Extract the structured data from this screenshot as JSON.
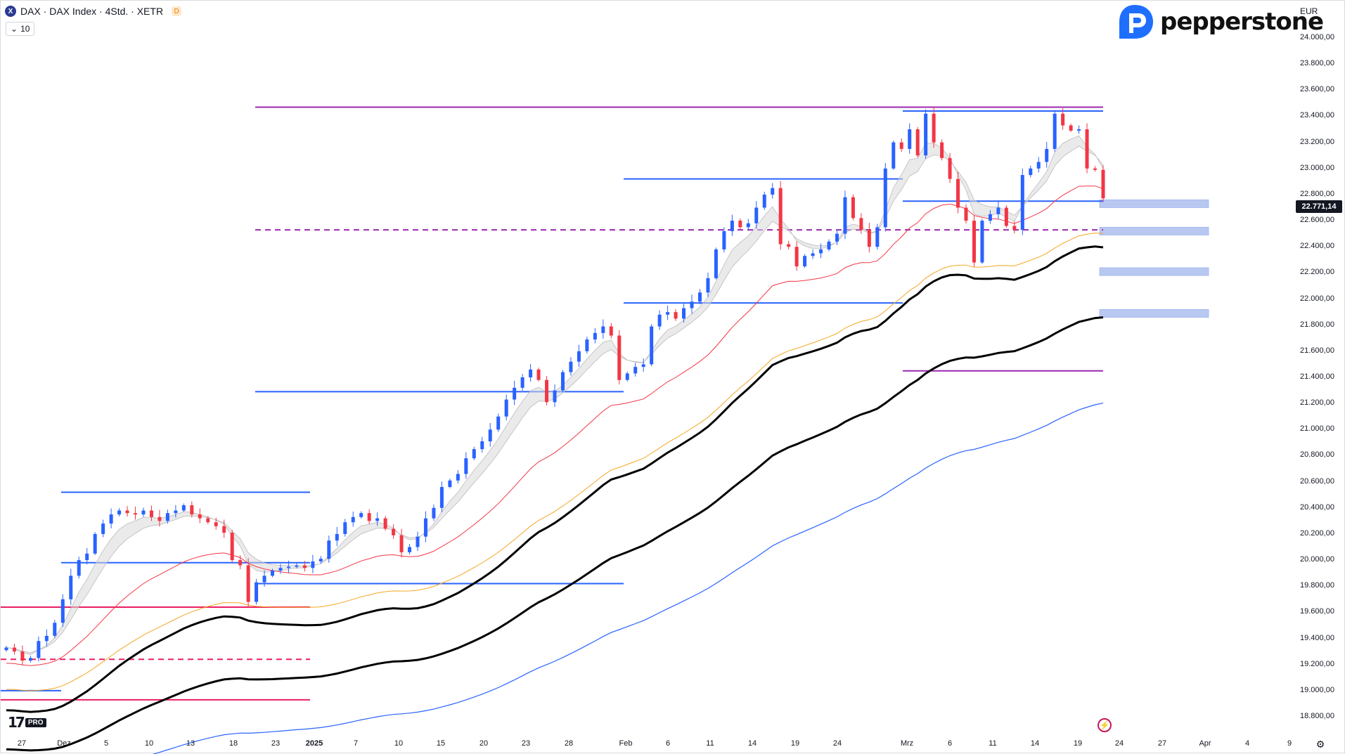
{
  "header": {
    "symbol_icon": "X",
    "title": "DAX · DAX Index · 4Std. · XETR",
    "session_badge": "D",
    "indicator_pill": "10",
    "indicator_chevron": "chevron-down-icon"
  },
  "brand": {
    "name": "pepperstone",
    "logo_icon": "pepperstone-logo-icon"
  },
  "axis": {
    "currency": "EUR",
    "current_price": "22.771,14",
    "price_labels": [
      "24.000,00",
      "23.800,00",
      "23.600,00",
      "23.400,00",
      "23.200,00",
      "23.000,00",
      "22.800,00",
      "22.600,00",
      "22.400,00",
      "22.200,00",
      "22.000,00",
      "21.800,00",
      "21.600,00",
      "21.400,00",
      "21.200,00",
      "21.000,00",
      "20.800,00",
      "20.600,00",
      "20.400,00",
      "20.200,00",
      "20.000,00",
      "19.800,00",
      "19.600,00",
      "19.400,00",
      "19.200,00",
      "19.000,00",
      "18.800,00"
    ],
    "time_labels": [
      "27",
      "Dez",
      "5",
      "10",
      "13",
      "18",
      "23",
      "2025",
      "7",
      "10",
      "15",
      "20",
      "23",
      "28",
      "Feb",
      "6",
      "11",
      "14",
      "19",
      "24",
      "Mrz",
      "6",
      "11",
      "14",
      "19",
      "24",
      "27",
      "Apr",
      "4",
      "9"
    ]
  },
  "footer": {
    "tv_logo": "17",
    "pro_badge": "PRO",
    "settings_icon": "gear-icon",
    "flash_icon": "lightning-icon"
  },
  "colors": {
    "bull": "#2962ff",
    "bear": "#f23645",
    "ema_fast": "#f23645",
    "ema_mid": "#f5a623",
    "ema_slow": "#000000",
    "ema_long": "#2962ff",
    "level_magenta": "#9c27b0",
    "level_blue": "#2962ff",
    "level_pink": "#e91e63",
    "zone": "#b8c8f0"
  },
  "chart_data": {
    "type": "candlestick",
    "symbol": "DAX",
    "timeframe": "4Std.",
    "exchange": "XETR",
    "y_range": [
      18800,
      24000
    ],
    "last_price": 22771.14,
    "horizontal_levels": [
      {
        "price": 23470,
        "style": "solid",
        "color": "magenta"
      },
      {
        "price": 23440,
        "style": "solid",
        "color": "blue"
      },
      {
        "price": 22920,
        "style": "solid",
        "color": "blue"
      },
      {
        "price": 22750,
        "style": "solid",
        "color": "blue"
      },
      {
        "price": 22530,
        "style": "dashed",
        "color": "magenta"
      },
      {
        "price": 21970,
        "style": "solid",
        "color": "blue"
      },
      {
        "price": 21450,
        "style": "solid",
        "color": "magenta"
      },
      {
        "price": 21290,
        "style": "solid",
        "color": "blue"
      },
      {
        "price": 20520,
        "style": "solid",
        "color": "blue"
      },
      {
        "price": 19980,
        "style": "solid",
        "color": "blue"
      },
      {
        "price": 19820,
        "style": "solid",
        "color": "blue"
      },
      {
        "price": 19640,
        "style": "solid",
        "color": "pink"
      },
      {
        "price": 19240,
        "style": "dashed",
        "color": "pink"
      },
      {
        "price": 19000,
        "style": "solid",
        "color": "blue"
      },
      {
        "price": 18930,
        "style": "solid",
        "color": "pink"
      }
    ],
    "support_zones": [
      {
        "from": 22700,
        "to": 22760
      },
      {
        "from": 22490,
        "to": 22550
      },
      {
        "from": 22180,
        "to": 22240
      },
      {
        "from": 21860,
        "to": 21920
      }
    ],
    "close_path": [
      19330,
      19300,
      19230,
      19250,
      19380,
      19420,
      19520,
      19700,
      19880,
      20000,
      20050,
      20200,
      20280,
      20350,
      20380,
      20360,
      20350,
      20380,
      20330,
      20300,
      20360,
      20380,
      20420,
      20350,
      20320,
      20290,
      20260,
      20210,
      20000,
      19960,
      19680,
      19830,
      19880,
      19920,
      19940,
      19950,
      19960,
      19940,
      19990,
      20010,
      20150,
      20200,
      20290,
      20330,
      20360,
      20300,
      20320,
      20240,
      20190,
      20060,
      20100,
      20180,
      20320,
      20400,
      20560,
      20610,
      20660,
      20780,
      20850,
      20910,
      21000,
      21100,
      21230,
      21320,
      21400,
      21460,
      21380,
      21210,
      21300,
      21440,
      21520,
      21600,
      21690,
      21740,
      21790,
      21720,
      21380,
      21430,
      21480,
      21500,
      21790,
      21880,
      21900,
      21850,
      21930,
      21980,
      22050,
      22160,
      22380,
      22520,
      22600,
      22550,
      22580,
      22700,
      22800,
      22850,
      22420,
      22400,
      22250,
      22330,
      22350,
      22380,
      22440,
      22500,
      22780,
      22620,
      22530,
      22400,
      22550,
      23000,
      23200,
      23150,
      23300,
      23100,
      23420,
      23200,
      23080,
      22920,
      22700,
      22600,
      22280,
      22600,
      22650,
      22700,
      22560,
      22530,
      22950,
      23000,
      23050,
      23150,
      23420,
      23330,
      23290,
      23300,
      23000,
      22990,
      22771
    ]
  }
}
